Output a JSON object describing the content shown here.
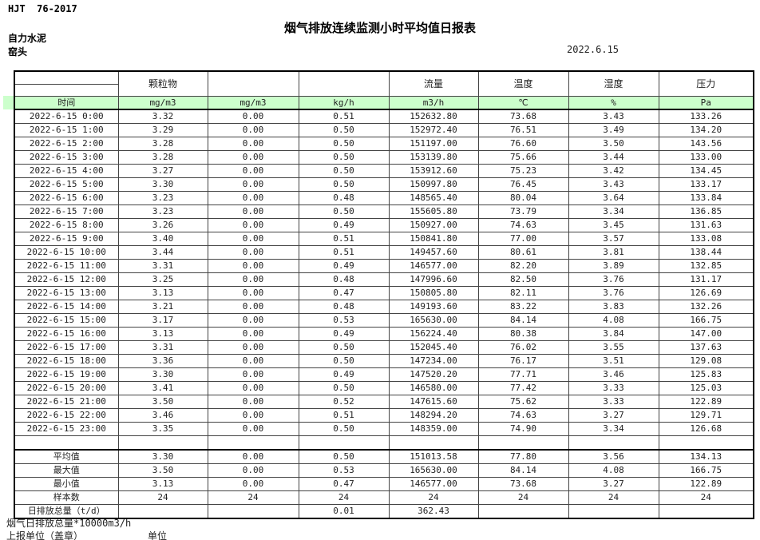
{
  "page": {
    "standard": "HJT  76-2017",
    "title": "烟气排放连续监测小时平均值日报表",
    "company": "自力水泥",
    "station": "窑头",
    "date": "2022.6.15"
  },
  "table": {
    "time_header": "时间",
    "groups": [
      {
        "label": "颗粒物",
        "unit": "mg/m3"
      },
      {
        "label": "",
        "unit": "mg/m3"
      },
      {
        "label": "",
        "unit": "kg/h"
      },
      {
        "label": "流量",
        "unit": "m3/h"
      },
      {
        "label": "温度",
        "unit": "℃"
      },
      {
        "label": "湿度",
        "unit": "%"
      },
      {
        "label": "压力",
        "unit": "Pa"
      }
    ],
    "rows": [
      {
        "time": "2022-6-15 0:00",
        "values": [
          "3.32",
          "0.00",
          "0.51",
          "152632.80",
          "73.68",
          "3.43",
          "133.26"
        ]
      },
      {
        "time": "2022-6-15 1:00",
        "values": [
          "3.29",
          "0.00",
          "0.50",
          "152972.40",
          "76.51",
          "3.49",
          "134.20"
        ]
      },
      {
        "time": "2022-6-15 2:00",
        "values": [
          "3.28",
          "0.00",
          "0.50",
          "151197.00",
          "76.60",
          "3.50",
          "143.56"
        ]
      },
      {
        "time": "2022-6-15 3:00",
        "values": [
          "3.28",
          "0.00",
          "0.50",
          "153139.80",
          "75.66",
          "3.44",
          "133.00"
        ]
      },
      {
        "time": "2022-6-15 4:00",
        "values": [
          "3.27",
          "0.00",
          "0.50",
          "153912.60",
          "75.23",
          "3.42",
          "134.45"
        ]
      },
      {
        "time": "2022-6-15 5:00",
        "values": [
          "3.30",
          "0.00",
          "0.50",
          "150997.80",
          "76.45",
          "3.43",
          "133.17"
        ]
      },
      {
        "time": "2022-6-15 6:00",
        "values": [
          "3.23",
          "0.00",
          "0.48",
          "148565.40",
          "80.04",
          "3.64",
          "133.84"
        ]
      },
      {
        "time": "2022-6-15 7:00",
        "values": [
          "3.23",
          "0.00",
          "0.50",
          "155605.80",
          "73.79",
          "3.34",
          "136.85"
        ]
      },
      {
        "time": "2022-6-15 8:00",
        "values": [
          "3.26",
          "0.00",
          "0.49",
          "150927.00",
          "74.63",
          "3.45",
          "131.63"
        ]
      },
      {
        "time": "2022-6-15 9:00",
        "values": [
          "3.40",
          "0.00",
          "0.51",
          "150841.80",
          "77.00",
          "3.57",
          "133.08"
        ]
      },
      {
        "time": "2022-6-15 10:00",
        "values": [
          "3.44",
          "0.00",
          "0.51",
          "149457.60",
          "80.61",
          "3.81",
          "138.44"
        ]
      },
      {
        "time": "2022-6-15 11:00",
        "values": [
          "3.31",
          "0.00",
          "0.49",
          "146577.00",
          "82.20",
          "3.89",
          "132.85"
        ]
      },
      {
        "time": "2022-6-15 12:00",
        "values": [
          "3.25",
          "0.00",
          "0.48",
          "147996.60",
          "82.50",
          "3.76",
          "131.17"
        ]
      },
      {
        "time": "2022-6-15 13:00",
        "values": [
          "3.13",
          "0.00",
          "0.47",
          "150805.80",
          "82.11",
          "3.76",
          "126.69"
        ]
      },
      {
        "time": "2022-6-15 14:00",
        "values": [
          "3.21",
          "0.00",
          "0.48",
          "149193.60",
          "83.22",
          "3.83",
          "132.26"
        ]
      },
      {
        "time": "2022-6-15 15:00",
        "values": [
          "3.17",
          "0.00",
          "0.53",
          "165630.00",
          "84.14",
          "4.08",
          "166.75"
        ]
      },
      {
        "time": "2022-6-15 16:00",
        "values": [
          "3.13",
          "0.00",
          "0.49",
          "156224.40",
          "80.38",
          "3.84",
          "147.00"
        ]
      },
      {
        "time": "2022-6-15 17:00",
        "values": [
          "3.31",
          "0.00",
          "0.50",
          "152045.40",
          "76.02",
          "3.55",
          "137.63"
        ]
      },
      {
        "time": "2022-6-15 18:00",
        "values": [
          "3.36",
          "0.00",
          "0.50",
          "147234.00",
          "76.17",
          "3.51",
          "129.08"
        ]
      },
      {
        "time": "2022-6-15 19:00",
        "values": [
          "3.30",
          "0.00",
          "0.49",
          "147520.20",
          "77.71",
          "3.46",
          "125.83"
        ]
      },
      {
        "time": "2022-6-15 20:00",
        "values": [
          "3.41",
          "0.00",
          "0.50",
          "146580.00",
          "77.42",
          "3.33",
          "125.03"
        ]
      },
      {
        "time": "2022-6-15 21:00",
        "values": [
          "3.50",
          "0.00",
          "0.52",
          "147615.60",
          "75.62",
          "3.33",
          "122.89"
        ]
      },
      {
        "time": "2022-6-15 22:00",
        "values": [
          "3.46",
          "0.00",
          "0.51",
          "148294.20",
          "74.63",
          "3.27",
          "129.71"
        ]
      },
      {
        "time": "2022-6-15 23:00",
        "values": [
          "3.35",
          "0.00",
          "0.50",
          "148359.00",
          "74.90",
          "3.34",
          "126.68"
        ]
      }
    ],
    "summary": [
      {
        "label": "平均值",
        "values": [
          "3.30",
          "0.00",
          "0.50",
          "151013.58",
          "77.80",
          "3.56",
          "134.13"
        ]
      },
      {
        "label": "最大值",
        "values": [
          "3.50",
          "0.00",
          "0.53",
          "165630.00",
          "84.14",
          "4.08",
          "166.75"
        ]
      },
      {
        "label": "最小值",
        "values": [
          "3.13",
          "0.00",
          "0.47",
          "146577.00",
          "73.68",
          "3.27",
          "122.89"
        ]
      },
      {
        "label": "样本数",
        "values": [
          "24",
          "24",
          "24",
          "24",
          "24",
          "24",
          "24"
        ]
      },
      {
        "label": "日排放总量（t/d）",
        "values": [
          "",
          "",
          "0.01",
          "362.43",
          "",
          "",
          ""
        ]
      }
    ]
  },
  "footer": {
    "note1": "烟气日排放总量*10000m3/h",
    "note2": "上报单位（盖章）",
    "note3": "单位"
  },
  "colors": {
    "unit_row_bg": "#ccffcc",
    "border": "#000000"
  }
}
